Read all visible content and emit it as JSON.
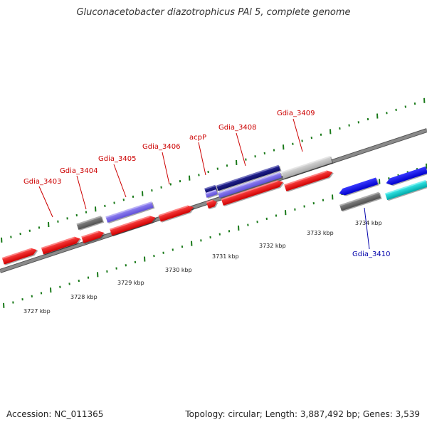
{
  "title": "Gluconacetobacter diazotrophicus PAl 5, complete genome",
  "footer": {
    "accession": "Accession: NC_011365",
    "summary": "Topology: circular; Length: 3,887,492 bp; Genes: 3,539"
  },
  "colors": {
    "backbone": "#8a8a8a",
    "tick": "#1a7a1a",
    "red": "#ee0000",
    "slate": "#7b68ee",
    "navy": "#1a1a80",
    "blue": "#0000ee",
    "gray_dark": "#696969",
    "gray_light": "#bbbbbb",
    "cyan": "#00cdcd",
    "label_red": "#cc0000",
    "label_blue": "#0000aa"
  },
  "scale_labels": [
    "3727 kbp",
    "3728 kbp",
    "3729 kbp",
    "3730 kbp",
    "3731 kbp",
    "3732 kbp",
    "3733 kbp",
    "3734 kbp"
  ],
  "gene_labels": [
    {
      "name": "Gdia_3403",
      "color": "label_red"
    },
    {
      "name": "Gdia_3404",
      "color": "label_red"
    },
    {
      "name": "Gdia_3405",
      "color": "label_red"
    },
    {
      "name": "Gdia_3406",
      "color": "label_red"
    },
    {
      "name": "acpP",
      "color": "label_red"
    },
    {
      "name": "Gdia_3408",
      "color": "label_red"
    },
    {
      "name": "Gdia_3409",
      "color": "label_red"
    },
    {
      "name": "Gdia_3410",
      "color": "label_blue"
    }
  ]
}
